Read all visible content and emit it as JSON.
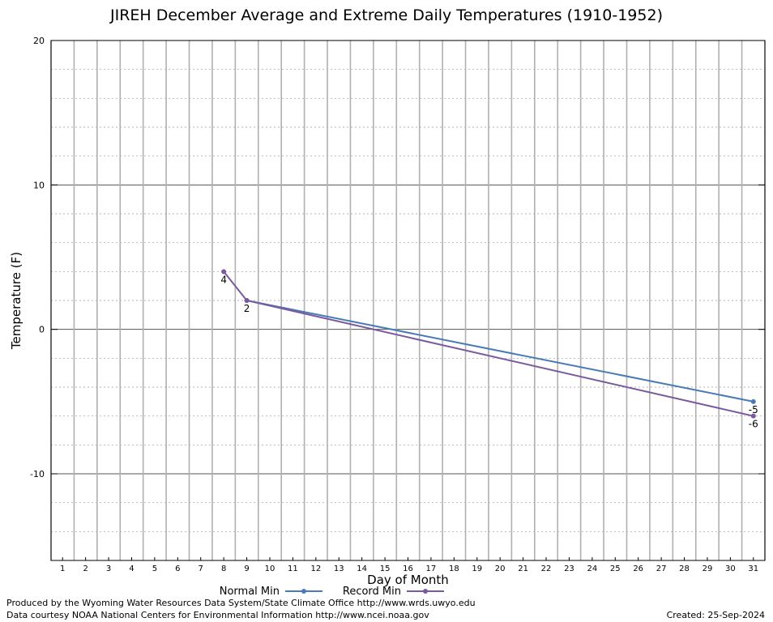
{
  "chart_data": {
    "type": "line",
    "title": "JIREH December Average and Extreme Daily Temperatures (1910-1952)",
    "xlabel": "Day of Month",
    "ylabel": "Temperature (F)",
    "xlim": [
      0.5,
      31.5
    ],
    "ylim": [
      -16,
      20
    ],
    "x_ticks": [
      1,
      2,
      3,
      4,
      5,
      6,
      7,
      8,
      9,
      10,
      11,
      12,
      13,
      14,
      15,
      16,
      17,
      18,
      19,
      20,
      21,
      22,
      23,
      24,
      25,
      26,
      27,
      28,
      29,
      30,
      31
    ],
    "y_ticks": [
      -10,
      0,
      10,
      20
    ],
    "grid": true,
    "legend_position": "bottom-center",
    "series": [
      {
        "name": "Normal Min",
        "color": "#4a7ab5",
        "points": [
          [
            9,
            2
          ],
          [
            31,
            -5
          ]
        ],
        "labels": [
          {
            "x": 31,
            "y": -5,
            "text": "-5"
          }
        ]
      },
      {
        "name": "Record Min",
        "color": "#7a5a9e",
        "points": [
          [
            8,
            4
          ],
          [
            9,
            2
          ],
          [
            31,
            -6
          ]
        ],
        "labels": [
          {
            "x": 8,
            "y": 4,
            "text": "4"
          },
          {
            "x": 9,
            "y": 2,
            "text": "2"
          },
          {
            "x": 31,
            "y": -6,
            "text": "-6"
          }
        ]
      }
    ]
  },
  "footer": {
    "produced_by": "Produced by the Wyoming Water Resources Data System/State Climate Office http://www.wrds.uwyo.edu",
    "data_courtesy": "Data courtesy NOAA National Centers for Environmental Information http://www.ncei.noaa.gov",
    "created": "Created:  25-Sep-2024"
  }
}
